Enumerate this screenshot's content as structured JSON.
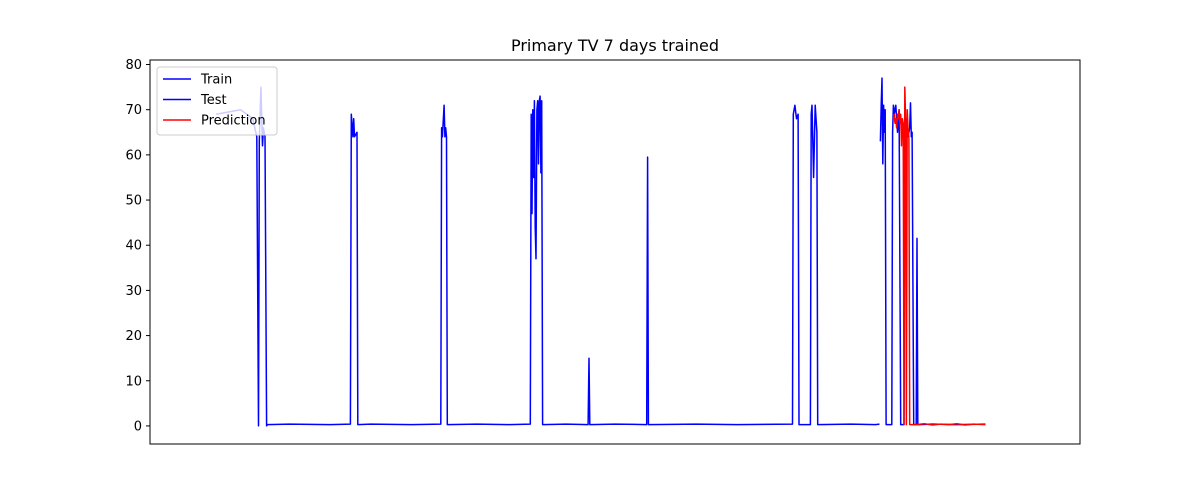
{
  "chart_data": {
    "type": "line",
    "title": "Primary TV 7 days trained",
    "xlabel": "",
    "ylabel": "",
    "ylim": [
      -4,
      81
    ],
    "yticks": [
      0,
      10,
      20,
      30,
      40,
      50,
      60,
      70,
      80
    ],
    "xlim": [
      0,
      1000
    ],
    "grid": false,
    "legend_position": "top-left",
    "series": [
      {
        "name": "Train",
        "color": "#0000ff",
        "points": [
          [
            10,
            69
          ],
          [
            40,
            70
          ],
          [
            55,
            68
          ],
          [
            60,
            64
          ],
          [
            62,
            0
          ],
          [
            63,
            63
          ],
          [
            65,
            75
          ],
          [
            67,
            62
          ],
          [
            68,
            66
          ],
          [
            70,
            64
          ],
          [
            72,
            0
          ],
          [
            73,
            0.3
          ],
          [
            100,
            0.4
          ],
          [
            150,
            0.3
          ],
          [
            175,
            0.4
          ],
          [
            176,
            69
          ],
          [
            178,
            64
          ],
          [
            179,
            68
          ],
          [
            180,
            64
          ],
          [
            183,
            65
          ],
          [
            184,
            0.3
          ],
          [
            200,
            0.4
          ],
          [
            250,
            0.3
          ],
          [
            286,
            0.4
          ],
          [
            287,
            66
          ],
          [
            288,
            64
          ],
          [
            290,
            71
          ],
          [
            291,
            64
          ],
          [
            292,
            66
          ],
          [
            293,
            64
          ],
          [
            294,
            0.3
          ],
          [
            330,
            0.4
          ],
          [
            370,
            0.3
          ],
          [
            396,
            0.4
          ],
          [
            397,
            69
          ],
          [
            398,
            47
          ],
          [
            399,
            70
          ],
          [
            400,
            55
          ],
          [
            401,
            72
          ],
          [
            402,
            44
          ],
          [
            403,
            37
          ],
          [
            404,
            70
          ],
          [
            405,
            72
          ],
          [
            406,
            58
          ],
          [
            407,
            72
          ],
          [
            408,
            73
          ],
          [
            409,
            56
          ],
          [
            410,
            72
          ],
          [
            411,
            0.3
          ],
          [
            440,
            0.4
          ],
          [
            467,
            0.3
          ],
          [
            468,
            15
          ],
          [
            469,
            0.3
          ],
          [
            500,
            0.4
          ],
          [
            539,
            0.3
          ],
          [
            540,
            59.5
          ],
          [
            541,
            0.3
          ],
          [
            600,
            0.4
          ],
          [
            650,
            0.3
          ],
          [
            718,
            0.4
          ],
          [
            719,
            69
          ],
          [
            721,
            71
          ],
          [
            723,
            68
          ],
          [
            725,
            69
          ],
          [
            726,
            0.3
          ],
          [
            740,
            0.3
          ],
          [
            741,
            69
          ],
          [
            742,
            71
          ],
          [
            744,
            55
          ],
          [
            746,
            71
          ],
          [
            748,
            65
          ],
          [
            749,
            0.3
          ],
          [
            790,
            0.4
          ],
          [
            820,
            0.3
          ],
          [
            825,
            0.4
          ]
        ]
      },
      {
        "name": "Test",
        "color": "#0000ff",
        "points": [
          [
            826,
            63
          ],
          [
            827,
            71
          ],
          [
            828,
            77
          ],
          [
            829,
            58
          ],
          [
            830,
            71
          ],
          [
            831,
            65
          ],
          [
            832,
            70
          ],
          [
            833,
            0.3
          ],
          [
            840,
            0.3
          ],
          [
            841,
            65
          ],
          [
            842,
            71
          ],
          [
            843,
            69
          ],
          [
            845,
            71
          ],
          [
            847,
            65
          ],
          [
            849,
            70
          ],
          [
            851,
            0.3
          ],
          [
            855,
            0.3
          ],
          [
            856,
            64
          ],
          [
            857,
            65
          ],
          [
            858,
            68
          ],
          [
            860,
            64
          ],
          [
            862,
            66
          ],
          [
            863,
            71.5
          ],
          [
            864,
            64
          ],
          [
            865,
            65
          ],
          [
            867,
            0.3
          ],
          [
            870,
            0.3
          ],
          [
            871,
            41.5
          ],
          [
            872,
            0.3
          ],
          [
            890,
            0.4
          ],
          [
            920,
            0.3
          ],
          [
            955,
            0.4
          ]
        ]
      },
      {
        "name": "Prediction",
        "color": "#ff0000",
        "points": [
          [
            842,
            68
          ],
          [
            843,
            69
          ],
          [
            844,
            67
          ],
          [
            845,
            68
          ],
          [
            846,
            66
          ],
          [
            847,
            69
          ],
          [
            848,
            68
          ],
          [
            849,
            70
          ],
          [
            850,
            67
          ],
          [
            851,
            69
          ],
          [
            852,
            62
          ],
          [
            853,
            68
          ],
          [
            854,
            67
          ],
          [
            855,
            0.3
          ],
          [
            856,
            75
          ],
          [
            857,
            68
          ],
          [
            858,
            0.3
          ],
          [
            859,
            70
          ],
          [
            860,
            66
          ],
          [
            861,
            64
          ],
          [
            862,
            0.3
          ],
          [
            870,
            0.3
          ],
          [
            880,
            0.5
          ],
          [
            890,
            0.2
          ],
          [
            900,
            0.4
          ],
          [
            910,
            0.3
          ],
          [
            920,
            0.5
          ],
          [
            930,
            0.2
          ],
          [
            940,
            0.4
          ],
          [
            955,
            0.3
          ]
        ]
      }
    ]
  }
}
